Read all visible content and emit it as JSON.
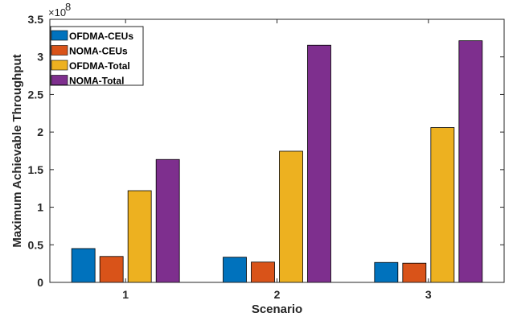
{
  "chart_data": {
    "type": "bar",
    "categories": [
      "1",
      "2",
      "3"
    ],
    "series": [
      {
        "name": "OFDMA-CEUs",
        "color": "#0072BD",
        "values": [
          45000000,
          33500000,
          26500000
        ]
      },
      {
        "name": "NOMA-CEUs",
        "color": "#D95319",
        "values": [
          34500000,
          27000000,
          25500000
        ]
      },
      {
        "name": "OFDMA-Total",
        "color": "#EDB120",
        "values": [
          122000000,
          174500000,
          206000000
        ]
      },
      {
        "name": "NOMA-Total",
        "color": "#7E2F8E",
        "values": [
          163500000,
          315500000,
          321500000
        ]
      }
    ],
    "xlabel": "Scenario",
    "ylabel": "Maximum Achievable Throughput",
    "ylim": [
      0,
      350000000
    ],
    "yticks": [
      0,
      50000000,
      100000000,
      150000000,
      200000000,
      250000000,
      300000000,
      350000000
    ],
    "ytick_labels": [
      "0",
      "0.5",
      "1",
      "1.5",
      "2",
      "2.5",
      "3",
      "3.5"
    ],
    "y_exponent_label": "×10",
    "y_exponent_power": "8",
    "grid": false,
    "legend_position": "top-left"
  }
}
